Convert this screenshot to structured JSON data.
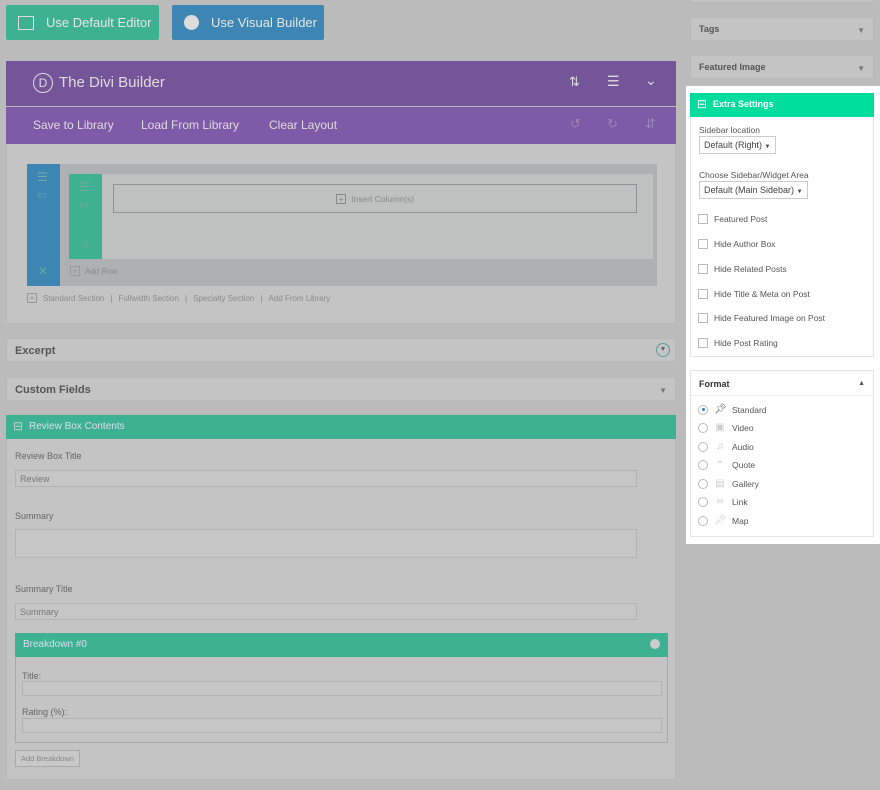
{
  "top_buttons": {
    "default_editor": "Use Default Editor",
    "visual_builder": "Use Visual Builder"
  },
  "divi": {
    "logo": "D",
    "title": "The Divi Builder",
    "toolbar": [
      "Save to Library",
      "Load From Library",
      "Clear Layout"
    ],
    "insert_columns": "Insert Column(s)",
    "add_row": "Add Row",
    "section_links": [
      "Standard Section",
      "Fullwidth Section",
      "Specialty Section",
      "Add From Library"
    ]
  },
  "excerpt": "Excerpt",
  "custom_fields": "Custom Fields",
  "review": {
    "title": "Review Box Contents",
    "box_title_label": "Review Box Title",
    "box_title_value": "Review",
    "summary_label": "Summary",
    "summary_value": "",
    "summary_title_label": "Summary Title",
    "summary_title_value": "Summary",
    "breakdown": {
      "title": "Breakdown #0",
      "title_label": "Title:",
      "rating_label": "Rating (%):"
    },
    "add_breakdown": "Add Breakdown"
  },
  "sidebar": {
    "tags": "Tags",
    "featured_image": "Featured Image",
    "extra": {
      "title": "Extra Settings",
      "sidebar_location_label": "Sidebar location",
      "sidebar_location_value": "Default (Right)",
      "widget_area_label": "Choose Sidebar/Widget Area",
      "widget_area_value": "Default (Main Sidebar)",
      "checkboxes": [
        {
          "label": "Featured Post",
          "checked": false
        },
        {
          "label": "Hide Author Box",
          "checked": false
        },
        {
          "label": "Hide Related Posts",
          "checked": false
        },
        {
          "label": "Hide Title & Meta on Post",
          "checked": false
        },
        {
          "label": "Hide Featured Image on Post",
          "checked": false
        },
        {
          "label": "Hide Post Rating",
          "checked": false
        }
      ]
    },
    "format": {
      "title": "Format",
      "selected": "Standard",
      "options": [
        {
          "label": "Standard",
          "icon": "pin-icon"
        },
        {
          "label": "Video",
          "icon": "video-icon"
        },
        {
          "label": "Audio",
          "icon": "music-icon"
        },
        {
          "label": "Quote",
          "icon": "quote-icon"
        },
        {
          "label": "Gallery",
          "icon": "gallery-icon"
        },
        {
          "label": "Link",
          "icon": "link-icon"
        },
        {
          "label": "Map",
          "icon": "pin-icon"
        }
      ]
    }
  },
  "colors": {
    "extra_header": "#00dc9c",
    "teal_dimmed": "#3fb193",
    "purple_dimmed": "#74559a",
    "blue_dimmed": "#3d86b3"
  }
}
